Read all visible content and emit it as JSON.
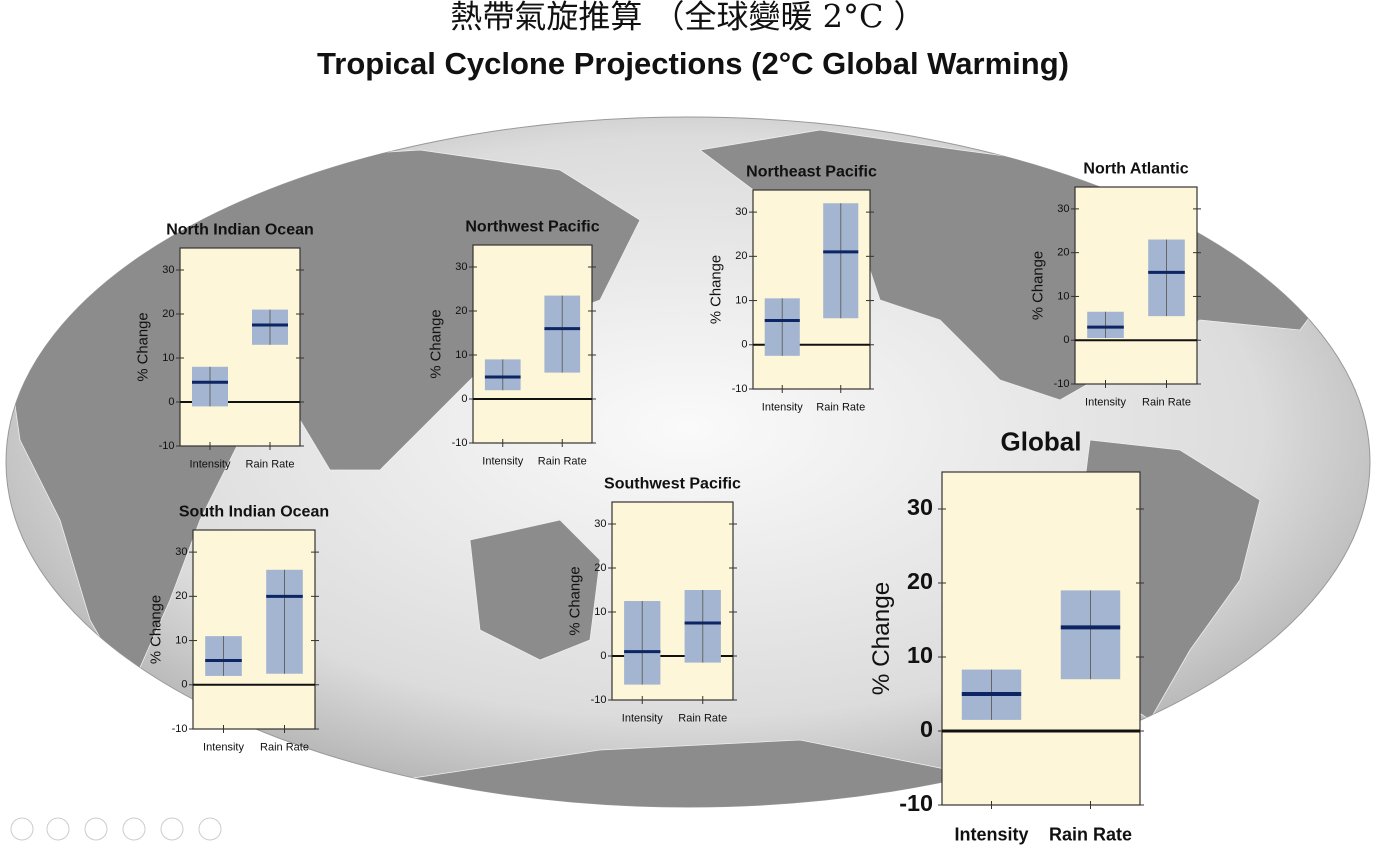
{
  "header": {
    "title_zh": "熱帶氣旋推算 （全球變暖 2°C ）",
    "title_en": "Tropical Cyclone Projections (2°C Global Warming)"
  },
  "chart_data": [
    {
      "type": "box",
      "title": "North Indian Ocean",
      "ylabel": "% Change",
      "categories": [
        "Intensity",
        "Rain Rate"
      ],
      "low": [
        -1,
        13
      ],
      "median": [
        4.5,
        17.5
      ],
      "high": [
        8,
        21
      ],
      "color": "#a3b5d1",
      "median_color": "#0d2562",
      "ylim": [
        -10,
        35
      ],
      "yticks": [
        -10,
        0,
        10,
        20,
        30
      ]
    },
    {
      "type": "box",
      "title": "Northwest Pacific",
      "ylabel": "% Change",
      "categories": [
        "Intensity",
        "Rain Rate"
      ],
      "low": [
        2,
        6
      ],
      "median": [
        5,
        16
      ],
      "high": [
        9,
        23.5
      ],
      "color": "#a3b5d1",
      "median_color": "#0d2562",
      "ylim": [
        -10,
        35
      ],
      "yticks": [
        -10,
        0,
        10,
        20,
        30
      ]
    },
    {
      "type": "box",
      "title": "Northeast Pacific",
      "ylabel": "% Change",
      "categories": [
        "Intensity",
        "Rain Rate"
      ],
      "low": [
        -2.5,
        6
      ],
      "median": [
        5.5,
        21
      ],
      "high": [
        10.5,
        32
      ],
      "color": "#a3b5d1",
      "median_color": "#0d2562",
      "ylim": [
        -10,
        35
      ],
      "yticks": [
        -10,
        0,
        10,
        20,
        30
      ]
    },
    {
      "type": "box",
      "title": "North Atlantic",
      "ylabel": "% Change",
      "categories": [
        "Intensity",
        "Rain Rate"
      ],
      "low": [
        0.5,
        5.5
      ],
      "median": [
        3,
        15.5
      ],
      "high": [
        6.5,
        23
      ],
      "color": "#a3b5d1",
      "median_color": "#0d2562",
      "ylim": [
        -10,
        35
      ],
      "yticks": [
        -10,
        0,
        10,
        20,
        30
      ]
    },
    {
      "type": "box",
      "title": "South Indian Ocean",
      "ylabel": "% Change",
      "categories": [
        "Intensity",
        "Rain Rate"
      ],
      "low": [
        2,
        2.5
      ],
      "median": [
        5.5,
        20
      ],
      "high": [
        11,
        26
      ],
      "color": "#a3b5d1",
      "median_color": "#0d2562",
      "ylim": [
        -10,
        35
      ],
      "yticks": [
        -10,
        0,
        10,
        20,
        30
      ]
    },
    {
      "type": "box",
      "title": "Southwest Pacific",
      "ylabel": "% Change",
      "categories": [
        "Intensity",
        "Rain Rate"
      ],
      "low": [
        -6.5,
        -1.5
      ],
      "median": [
        1,
        7.5
      ],
      "high": [
        12.5,
        15
      ],
      "color": "#a3b5d1",
      "median_color": "#0d2562",
      "ylim": [
        -10,
        35
      ],
      "yticks": [
        -10,
        0,
        10,
        20,
        30
      ]
    },
    {
      "type": "box",
      "title": "Global",
      "ylabel": "% Change",
      "categories": [
        "Intensity",
        "Rain Rate"
      ],
      "low": [
        1.5,
        7
      ],
      "median": [
        5,
        14
      ],
      "high": [
        8.3,
        19
      ],
      "color": "#a3b5d1",
      "median_color": "#0d2562",
      "ylim": [
        -10,
        35
      ],
      "yticks": [
        -10,
        0,
        10,
        20,
        30
      ]
    }
  ]
}
